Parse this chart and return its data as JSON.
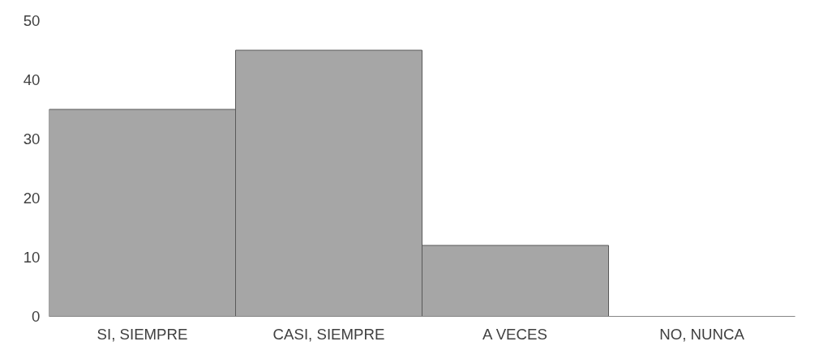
{
  "chart_data": {
    "type": "bar",
    "categories": [
      "SI, SIEMPRE",
      "CASI, SIEMPRE",
      "A VECES",
      "NO, NUNCA"
    ],
    "values": [
      35,
      45,
      12,
      0
    ],
    "color": "#a6a6a6",
    "ylim": [
      0,
      50
    ],
    "yticks": [
      0,
      10,
      20,
      30,
      40,
      50
    ],
    "grid": false
  }
}
